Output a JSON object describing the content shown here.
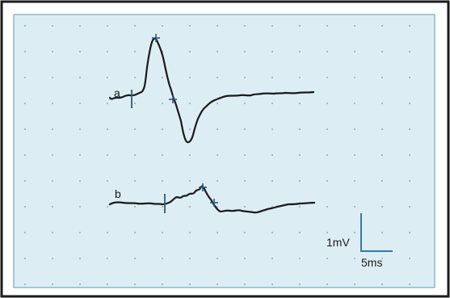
{
  "colors": {
    "frame_border": "#1a1a1a",
    "panel_background": "#ddedf4",
    "panel_border": "#8ab8ce",
    "grid_dot": "#9fb6c2",
    "trace": "#1a1a1a",
    "marker": "#2f5a78",
    "scale_bar": "#2f7bb0",
    "label_text": "#1a1a1a"
  },
  "traces": [
    {
      "label": "a",
      "onset_marker": "vertical-tick",
      "peak_marker": "cross",
      "offset_marker": "cross"
    },
    {
      "label": "b",
      "onset_marker": "vertical-tick",
      "peak_marker": "cross",
      "offset_marker": "cross"
    }
  ],
  "scale_bar": {
    "voltage_label": "1mV",
    "time_label": "5ms"
  }
}
